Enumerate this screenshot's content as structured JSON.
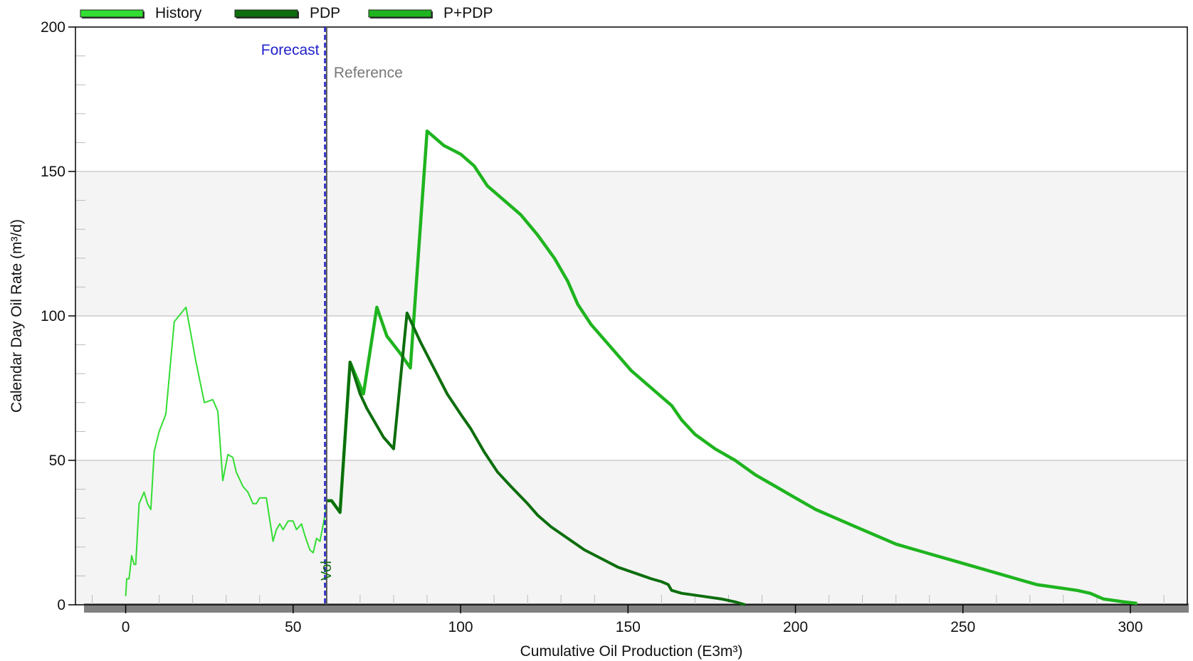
{
  "chart_data": {
    "type": "line",
    "title": "",
    "xlabel": "Cumulative Oil Production (E3m³)",
    "ylabel": "Calendar Day Oil Rate (m³/d)",
    "xlim": [
      -15,
      317
    ],
    "ylim": [
      0,
      200
    ],
    "x_ticks": [
      0,
      50,
      100,
      150,
      200,
      250,
      300
    ],
    "y_ticks": [
      0,
      50,
      100,
      150,
      200
    ],
    "grid": true,
    "banded_background": true,
    "legend_position": "top-left",
    "annotations": {
      "forecast_label": "Forecast",
      "forecast_x": 59.5,
      "reference_label": "Reference",
      "reference_x": 60,
      "vol_label": "Vol"
    },
    "colors": {
      "history": "#33dd33",
      "pdp": "#0d6e0d",
      "ppdp": "#1fb41f",
      "forecast_line": "#2222cc",
      "reference_line": "#555555",
      "band": "#f4f4f4",
      "grid": "#cccccc",
      "shadow": "#808080"
    },
    "series": [
      {
        "name": "History",
        "style": "thin",
        "points": [
          [
            0,
            3
          ],
          [
            0.3,
            9
          ],
          [
            1,
            9
          ],
          [
            1.8,
            17
          ],
          [
            2.5,
            14
          ],
          [
            3,
            14
          ],
          [
            4,
            35
          ],
          [
            5.5,
            39
          ],
          [
            6.5,
            35
          ],
          [
            7.5,
            33
          ],
          [
            8.5,
            53
          ],
          [
            10,
            60
          ],
          [
            12,
            66
          ],
          [
            14.5,
            98
          ],
          [
            18,
            103
          ],
          [
            21,
            84
          ],
          [
            23.5,
            70
          ],
          [
            26,
            71
          ],
          [
            27.5,
            67
          ],
          [
            29,
            43
          ],
          [
            30.5,
            52
          ],
          [
            32,
            51
          ],
          [
            33,
            46
          ],
          [
            35,
            41
          ],
          [
            36.5,
            39
          ],
          [
            38,
            35
          ],
          [
            39,
            35
          ],
          [
            40,
            37
          ],
          [
            42,
            37
          ],
          [
            44,
            22
          ],
          [
            45,
            26
          ],
          [
            46,
            28
          ],
          [
            47,
            26
          ],
          [
            48.5,
            29
          ],
          [
            50,
            29
          ],
          [
            51,
            26
          ],
          [
            52.5,
            28
          ],
          [
            53.5,
            24
          ],
          [
            55,
            19
          ],
          [
            56,
            18
          ],
          [
            57,
            23
          ],
          [
            58,
            22
          ],
          [
            60,
            34
          ]
        ]
      },
      {
        "name": "PDP",
        "style": "medium",
        "points": [
          [
            60,
            36
          ],
          [
            61.5,
            36
          ],
          [
            64,
            32
          ],
          [
            67,
            84
          ],
          [
            70,
            73
          ],
          [
            72,
            68
          ],
          [
            75,
            62
          ],
          [
            77,
            58
          ],
          [
            80,
            54
          ],
          [
            84,
            101
          ],
          [
            88,
            91
          ],
          [
            92,
            82
          ],
          [
            96,
            73
          ],
          [
            100,
            66
          ],
          [
            103,
            61
          ],
          [
            107,
            53
          ],
          [
            111,
            46
          ],
          [
            115,
            41
          ],
          [
            120,
            35
          ],
          [
            123,
            31
          ],
          [
            127,
            27
          ],
          [
            132,
            23
          ],
          [
            137,
            19
          ],
          [
            142,
            16
          ],
          [
            147,
            13
          ],
          [
            152,
            11
          ],
          [
            157,
            9
          ],
          [
            160,
            8
          ],
          [
            162,
            7
          ],
          [
            163,
            5
          ],
          [
            166,
            4
          ],
          [
            172,
            3
          ],
          [
            178,
            2
          ],
          [
            182,
            1
          ],
          [
            185,
            0
          ]
        ]
      },
      {
        "name": "P+PDP",
        "style": "thick",
        "points": [
          [
            60,
            36
          ],
          [
            61.5,
            36
          ],
          [
            64,
            32
          ],
          [
            67,
            84
          ],
          [
            71,
            73
          ],
          [
            75,
            103
          ],
          [
            78,
            93
          ],
          [
            82,
            87
          ],
          [
            85,
            82
          ],
          [
            90,
            164
          ],
          [
            95,
            159
          ],
          [
            100,
            156
          ],
          [
            104,
            152
          ],
          [
            108,
            145
          ],
          [
            113,
            140
          ],
          [
            118,
            135
          ],
          [
            123,
            128
          ],
          [
            128,
            120
          ],
          [
            132,
            112
          ],
          [
            135,
            104
          ],
          [
            139,
            97
          ],
          [
            145,
            89
          ],
          [
            151,
            81
          ],
          [
            156,
            76
          ],
          [
            160,
            72
          ],
          [
            163,
            69
          ],
          [
            166,
            64
          ],
          [
            170,
            59
          ],
          [
            176,
            54
          ],
          [
            182,
            50
          ],
          [
            188,
            45
          ],
          [
            194,
            41
          ],
          [
            200,
            37
          ],
          [
            206,
            33
          ],
          [
            212,
            30
          ],
          [
            218,
            27
          ],
          [
            224,
            24
          ],
          [
            230,
            21
          ],
          [
            236,
            19
          ],
          [
            242,
            17
          ],
          [
            248,
            15
          ],
          [
            254,
            13
          ],
          [
            260,
            11
          ],
          [
            266,
            9
          ],
          [
            272,
            7
          ],
          [
            278,
            6
          ],
          [
            284,
            5
          ],
          [
            288,
            4
          ],
          [
            292,
            2
          ],
          [
            298,
            1
          ],
          [
            302,
            0.5
          ]
        ]
      }
    ]
  }
}
